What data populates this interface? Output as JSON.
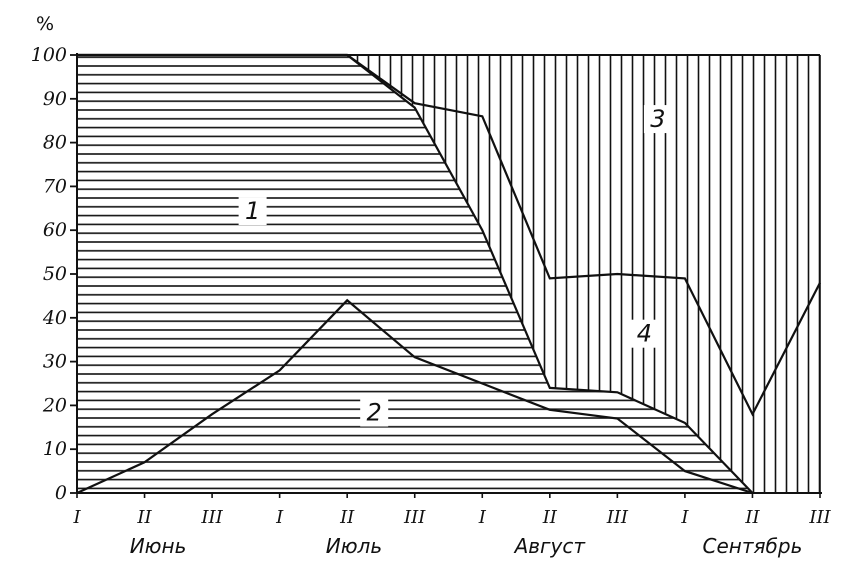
{
  "chart_data": {
    "type": "area",
    "title": "",
    "ylabel": "%",
    "ylim": [
      0,
      100
    ],
    "yticks": [
      "0",
      "10",
      "20",
      "30",
      "40",
      "50",
      "60",
      "70",
      "80",
      "90",
      "100"
    ],
    "x_ticks": [
      "I",
      "II",
      "III",
      "I",
      "II",
      "III",
      "I",
      "II",
      "III",
      "I",
      "II",
      "III"
    ],
    "months": [
      "Июнь",
      "Июль",
      "Август",
      "Сентябрь"
    ],
    "x": [
      0,
      1,
      2,
      3,
      4,
      5,
      6,
      7,
      8,
      9,
      10,
      11
    ],
    "boundaries": {
      "curve_1_2": [
        0,
        7,
        18,
        28,
        44,
        31,
        25,
        19,
        17,
        5,
        0,
        null
      ],
      "curve_top_of_1": [
        100,
        100,
        100,
        100,
        100,
        88,
        60,
        24,
        23,
        16,
        0,
        null
      ],
      "curve_top_of_4": [
        100,
        100,
        100,
        100,
        100,
        89,
        86,
        49,
        50,
        49,
        18,
        48
      ]
    },
    "series": [
      {
        "name": "1",
        "values": [
          100,
          93,
          82,
          72,
          56,
          57,
          35,
          5,
          6,
          11,
          0,
          null
        ]
      },
      {
        "name": "2",
        "values": [
          0,
          7,
          18,
          28,
          44,
          31,
          25,
          19,
          17,
          5,
          0,
          null
        ]
      },
      {
        "name": "4",
        "values": [
          0,
          0,
          0,
          0,
          0,
          1,
          26,
          25,
          27,
          33,
          18,
          48
        ]
      },
      {
        "name": "3",
        "values": [
          0,
          0,
          0,
          0,
          0,
          11,
          14,
          51,
          50,
          51,
          82,
          52
        ]
      }
    ],
    "grid": false
  }
}
